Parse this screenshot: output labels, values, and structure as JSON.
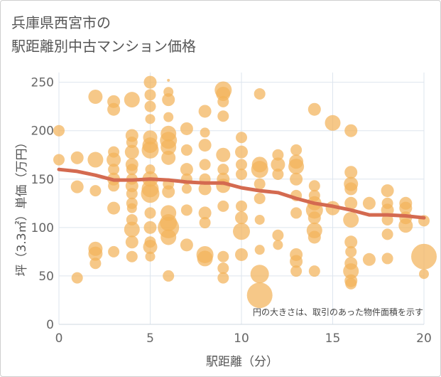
{
  "header": {
    "title": "兵庫県西宮市の\n駅距離別中古マンション価格"
  },
  "chart_data": {
    "type": "scatter",
    "title": "兵庫県西宮市の駅距離別中古マンション価格",
    "xlabel": "駅距離（分）",
    "ylabel": "坪（3.3㎡）単価（万円）",
    "xlim": [
      0,
      20
    ],
    "ylim": [
      0,
      260
    ],
    "xticks": [
      0,
      5,
      10,
      15,
      20
    ],
    "yticks": [
      0,
      50,
      100,
      150,
      200,
      250
    ],
    "grid": true,
    "annotation": "円の大きさは、取引のあった物件面積を示す",
    "bubble_color": "#f2b35a",
    "trend_color": "#d46a50",
    "points": [
      {
        "x": 0,
        "y": 200,
        "s": 8
      },
      {
        "x": 0,
        "y": 170,
        "s": 8
      },
      {
        "x": 1,
        "y": 172,
        "s": 9
      },
      {
        "x": 1,
        "y": 142,
        "s": 9
      },
      {
        "x": 1,
        "y": 48,
        "s": 8
      },
      {
        "x": 2,
        "y": 235,
        "s": 10
      },
      {
        "x": 2,
        "y": 170,
        "s": 11
      },
      {
        "x": 2,
        "y": 138,
        "s": 8
      },
      {
        "x": 2,
        "y": 78,
        "s": 10
      },
      {
        "x": 2,
        "y": 73,
        "s": 10
      },
      {
        "x": 2,
        "y": 63,
        "s": 8
      },
      {
        "x": 3,
        "y": 230,
        "s": 9
      },
      {
        "x": 3,
        "y": 222,
        "s": 9
      },
      {
        "x": 3,
        "y": 178,
        "s": 8
      },
      {
        "x": 3,
        "y": 170,
        "s": 10
      },
      {
        "x": 3,
        "y": 160,
        "s": 8
      },
      {
        "x": 3,
        "y": 150,
        "s": 9
      },
      {
        "x": 3,
        "y": 143,
        "s": 8
      },
      {
        "x": 3,
        "y": 120,
        "s": 9
      },
      {
        "x": 3,
        "y": 75,
        "s": 8
      },
      {
        "x": 4,
        "y": 232,
        "s": 11
      },
      {
        "x": 4,
        "y": 195,
        "s": 9
      },
      {
        "x": 4,
        "y": 188,
        "s": 8
      },
      {
        "x": 4,
        "y": 178,
        "s": 10
      },
      {
        "x": 4,
        "y": 165,
        "s": 9
      },
      {
        "x": 4,
        "y": 160,
        "s": 8
      },
      {
        "x": 4,
        "y": 150,
        "s": 8
      },
      {
        "x": 4,
        "y": 143,
        "s": 9
      },
      {
        "x": 4,
        "y": 135,
        "s": 8
      },
      {
        "x": 4,
        "y": 125,
        "s": 8
      },
      {
        "x": 4,
        "y": 120,
        "s": 7
      },
      {
        "x": 4,
        "y": 108,
        "s": 8
      },
      {
        "x": 4,
        "y": 98,
        "s": 11
      },
      {
        "x": 4,
        "y": 85,
        "s": 9
      },
      {
        "x": 4,
        "y": 70,
        "s": 8
      },
      {
        "x": 5,
        "y": 250,
        "s": 9
      },
      {
        "x": 5,
        "y": 237,
        "s": 8
      },
      {
        "x": 5,
        "y": 225,
        "s": 8
      },
      {
        "x": 5,
        "y": 212,
        "s": 7
      },
      {
        "x": 5,
        "y": 193,
        "s": 10
      },
      {
        "x": 5,
        "y": 185,
        "s": 11
      },
      {
        "x": 5,
        "y": 180,
        "s": 12
      },
      {
        "x": 5,
        "y": 160,
        "s": 7
      },
      {
        "x": 5,
        "y": 150,
        "s": 11
      },
      {
        "x": 5,
        "y": 140,
        "s": 12
      },
      {
        "x": 5,
        "y": 135,
        "s": 13
      },
      {
        "x": 5,
        "y": 115,
        "s": 8
      },
      {
        "x": 5,
        "y": 100,
        "s": 9
      },
      {
        "x": 5,
        "y": 85,
        "s": 8
      },
      {
        "x": 5,
        "y": 80,
        "s": 10
      },
      {
        "x": 5,
        "y": 70,
        "s": 7
      },
      {
        "x": 6,
        "y": 252,
        "s": 2
      },
      {
        "x": 6,
        "y": 240,
        "s": 7
      },
      {
        "x": 6,
        "y": 232,
        "s": 9
      },
      {
        "x": 6,
        "y": 214,
        "s": 7
      },
      {
        "x": 6,
        "y": 197,
        "s": 11
      },
      {
        "x": 6,
        "y": 190,
        "s": 12
      },
      {
        "x": 6,
        "y": 183,
        "s": 11
      },
      {
        "x": 6,
        "y": 172,
        "s": 10
      },
      {
        "x": 6,
        "y": 145,
        "s": 8
      },
      {
        "x": 6,
        "y": 137,
        "s": 9
      },
      {
        "x": 6,
        "y": 115,
        "s": 11
      },
      {
        "x": 6,
        "y": 105,
        "s": 12
      },
      {
        "x": 6,
        "y": 100,
        "s": 15
      },
      {
        "x": 6,
        "y": 90,
        "s": 11
      },
      {
        "x": 6,
        "y": 50,
        "s": 8
      },
      {
        "x": 7,
        "y": 202,
        "s": 9
      },
      {
        "x": 7,
        "y": 180,
        "s": 8
      },
      {
        "x": 7,
        "y": 160,
        "s": 9
      },
      {
        "x": 7,
        "y": 150,
        "s": 8
      },
      {
        "x": 7,
        "y": 140,
        "s": 7
      },
      {
        "x": 7,
        "y": 118,
        "s": 8
      },
      {
        "x": 7,
        "y": 82,
        "s": 9
      },
      {
        "x": 8,
        "y": 220,
        "s": 9
      },
      {
        "x": 8,
        "y": 198,
        "s": 7
      },
      {
        "x": 8,
        "y": 185,
        "s": 9
      },
      {
        "x": 8,
        "y": 165,
        "s": 8
      },
      {
        "x": 8,
        "y": 150,
        "s": 8
      },
      {
        "x": 8,
        "y": 140,
        "s": 9
      },
      {
        "x": 8,
        "y": 115,
        "s": 9
      },
      {
        "x": 8,
        "y": 105,
        "s": 8
      },
      {
        "x": 8,
        "y": 72,
        "s": 12
      },
      {
        "x": 8,
        "y": 68,
        "s": 11
      },
      {
        "x": 9,
        "y": 242,
        "s": 12
      },
      {
        "x": 9,
        "y": 238,
        "s": 10
      },
      {
        "x": 9,
        "y": 230,
        "s": 8
      },
      {
        "x": 9,
        "y": 215,
        "s": 8
      },
      {
        "x": 9,
        "y": 175,
        "s": 10
      },
      {
        "x": 9,
        "y": 160,
        "s": 8
      },
      {
        "x": 9,
        "y": 150,
        "s": 9
      },
      {
        "x": 9,
        "y": 143,
        "s": 10
      },
      {
        "x": 9,
        "y": 122,
        "s": 8
      },
      {
        "x": 9,
        "y": 70,
        "s": 8
      },
      {
        "x": 9,
        "y": 58,
        "s": 8
      },
      {
        "x": 9,
        "y": 48,
        "s": 8
      },
      {
        "x": 10,
        "y": 193,
        "s": 8
      },
      {
        "x": 10,
        "y": 178,
        "s": 9
      },
      {
        "x": 10,
        "y": 165,
        "s": 8
      },
      {
        "x": 10,
        "y": 155,
        "s": 8
      },
      {
        "x": 10,
        "y": 122,
        "s": 8
      },
      {
        "x": 10,
        "y": 110,
        "s": 9
      },
      {
        "x": 10,
        "y": 96,
        "s": 12
      },
      {
        "x": 10,
        "y": 72,
        "s": 9
      },
      {
        "x": 11,
        "y": 238,
        "s": 8
      },
      {
        "x": 11,
        "y": 165,
        "s": 11
      },
      {
        "x": 11,
        "y": 160,
        "s": 12
      },
      {
        "x": 11,
        "y": 145,
        "s": 8
      },
      {
        "x": 11,
        "y": 130,
        "s": 8
      },
      {
        "x": 11,
        "y": 108,
        "s": 7
      },
      {
        "x": 11,
        "y": 77,
        "s": 7
      },
      {
        "x": 11,
        "y": 52,
        "s": 13
      },
      {
        "x": 11,
        "y": 30,
        "s": 18
      },
      {
        "x": 12,
        "y": 175,
        "s": 8
      },
      {
        "x": 12,
        "y": 165,
        "s": 10
      },
      {
        "x": 12,
        "y": 155,
        "s": 8
      },
      {
        "x": 12,
        "y": 92,
        "s": 8
      },
      {
        "x": 12,
        "y": 82,
        "s": 7
      },
      {
        "x": 13,
        "y": 180,
        "s": 8
      },
      {
        "x": 13,
        "y": 168,
        "s": 10
      },
      {
        "x": 13,
        "y": 163,
        "s": 11
      },
      {
        "x": 13,
        "y": 150,
        "s": 9
      },
      {
        "x": 13,
        "y": 133,
        "s": 8
      },
      {
        "x": 13,
        "y": 115,
        "s": 8
      },
      {
        "x": 13,
        "y": 72,
        "s": 9
      },
      {
        "x": 13,
        "y": 65,
        "s": 9
      },
      {
        "x": 13,
        "y": 55,
        "s": 8
      },
      {
        "x": 14,
        "y": 222,
        "s": 9
      },
      {
        "x": 14,
        "y": 143,
        "s": 8
      },
      {
        "x": 14,
        "y": 133,
        "s": 8
      },
      {
        "x": 14,
        "y": 125,
        "s": 10
      },
      {
        "x": 14,
        "y": 118,
        "s": 12
      },
      {
        "x": 14,
        "y": 110,
        "s": 9
      },
      {
        "x": 14,
        "y": 97,
        "s": 11
      },
      {
        "x": 14,
        "y": 90,
        "s": 9
      },
      {
        "x": 14,
        "y": 55,
        "s": 8
      },
      {
        "x": 15,
        "y": 208,
        "s": 11
      },
      {
        "x": 15,
        "y": 120,
        "s": 10
      },
      {
        "x": 16,
        "y": 200,
        "s": 9
      },
      {
        "x": 16,
        "y": 157,
        "s": 9
      },
      {
        "x": 16,
        "y": 145,
        "s": 10
      },
      {
        "x": 16,
        "y": 140,
        "s": 9
      },
      {
        "x": 16,
        "y": 125,
        "s": 9
      },
      {
        "x": 16,
        "y": 108,
        "s": 11
      },
      {
        "x": 16,
        "y": 85,
        "s": 9
      },
      {
        "x": 16,
        "y": 75,
        "s": 8
      },
      {
        "x": 16,
        "y": 63,
        "s": 9
      },
      {
        "x": 16,
        "y": 55,
        "s": 11
      },
      {
        "x": 16,
        "y": 45,
        "s": 9
      },
      {
        "x": 16,
        "y": 42,
        "s": 8
      },
      {
        "x": 17,
        "y": 125,
        "s": 9
      },
      {
        "x": 17,
        "y": 67,
        "s": 9
      },
      {
        "x": 18,
        "y": 138,
        "s": 9
      },
      {
        "x": 18,
        "y": 125,
        "s": 8
      },
      {
        "x": 18,
        "y": 118,
        "s": 9
      },
      {
        "x": 18,
        "y": 108,
        "s": 8
      },
      {
        "x": 18,
        "y": 93,
        "s": 8
      },
      {
        "x": 18,
        "y": 68,
        "s": 8
      },
      {
        "x": 19,
        "y": 125,
        "s": 9
      },
      {
        "x": 19,
        "y": 120,
        "s": 9
      },
      {
        "x": 19,
        "y": 110,
        "s": 9
      },
      {
        "x": 19,
        "y": 102,
        "s": 10
      },
      {
        "x": 20,
        "y": 107,
        "s": 8
      },
      {
        "x": 20,
        "y": 70,
        "s": 18
      },
      {
        "x": 20,
        "y": 52,
        "s": 7
      }
    ],
    "trend": {
      "x": [
        0,
        1,
        2,
        3,
        4,
        5,
        6,
        7,
        8,
        9,
        10,
        11,
        12,
        13,
        14,
        15,
        16,
        17,
        18,
        19,
        20
      ],
      "y": [
        160,
        158,
        154,
        149,
        149,
        150,
        149,
        147,
        146,
        146,
        141,
        138,
        136,
        130,
        125,
        122,
        118,
        113,
        113,
        112,
        110
      ]
    }
  }
}
